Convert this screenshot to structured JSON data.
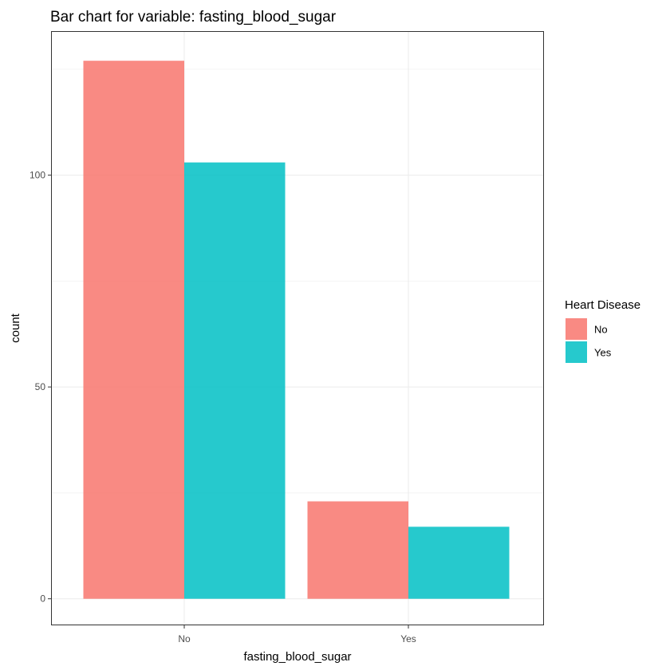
{
  "chart_data": {
    "type": "bar",
    "title": "Bar chart for variable: fasting_blood_sugar",
    "xlabel": "fasting_blood_sugar",
    "ylabel": "count",
    "categories": [
      "No",
      "Yes"
    ],
    "series": [
      {
        "name": "No",
        "values": [
          127,
          23
        ],
        "color": "#F8766D"
      },
      {
        "name": "Yes",
        "values": [
          103,
          17
        ],
        "color": "#00BFC4"
      }
    ],
    "ylim": [
      0,
      134
    ],
    "yticks": [
      0,
      50,
      100
    ],
    "legend": {
      "title": "Heart Disease",
      "position": "right"
    },
    "grid": true
  }
}
